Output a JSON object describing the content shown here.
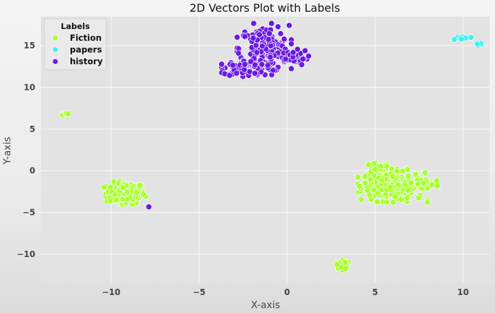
{
  "chart_data": {
    "type": "scatter",
    "title": "2D Vectors Plot with Labels",
    "xlabel": "X-axis",
    "ylabel": "Y-axis",
    "xlim": [
      -14,
      11.5
    ],
    "ylim": [
      -13.5,
      18.5
    ],
    "xticks": [
      -10,
      -5,
      0,
      5,
      10
    ],
    "yticks": [
      -10,
      -5,
      0,
      5,
      10,
      15
    ],
    "grid": true,
    "legend": {
      "title": "Labels",
      "placement": "top-left"
    },
    "series": [
      {
        "name": "Fiction",
        "color": "#a8ff2e",
        "clusters": [
          {
            "center": [
              -9.2,
              -2.7
            ],
            "spread": [
              0.55,
              0.65
            ],
            "count": 150
          },
          {
            "center": [
              6.0,
              -1.8
            ],
            "spread": [
              0.9,
              0.9
            ],
            "count": 230
          },
          {
            "center": [
              5.1,
              0.3
            ],
            "spread": [
              0.35,
              0.3
            ],
            "count": 25
          },
          {
            "center": [
              7.8,
              -1.5
            ],
            "spread": [
              0.5,
              0.2
            ],
            "count": 18
          },
          {
            "center": [
              3.1,
              -11.4
            ],
            "spread": [
              0.25,
              0.3
            ],
            "count": 20
          },
          {
            "center": [
              -12.5,
              6.9
            ],
            "spread": [
              0.12,
              0.1
            ],
            "count": 5
          }
        ]
      },
      {
        "name": "papers",
        "color": "#3ef2f2",
        "clusters": [
          {
            "center": [
              9.9,
              15.9
            ],
            "spread": [
              0.25,
              0.15
            ],
            "count": 10
          },
          {
            "center": [
              11.0,
              15.2
            ],
            "spread": [
              0.15,
              0.08
            ],
            "count": 6
          }
        ]
      },
      {
        "name": "history",
        "color": "#6a1be2",
        "clusters": [
          {
            "center": [
              -1.3,
              14.6
            ],
            "spread": [
              0.7,
              1.4
            ],
            "count": 190
          },
          {
            "center": [
              -2.4,
              12.3
            ],
            "spread": [
              0.6,
              0.45
            ],
            "count": 70
          },
          {
            "center": [
              0.3,
              13.6
            ],
            "spread": [
              0.45,
              0.45
            ],
            "count": 40
          },
          {
            "center": [
              -7.9,
              -4.3
            ],
            "spread": [
              0.03,
              0.03
            ],
            "count": 1
          }
        ]
      }
    ]
  }
}
